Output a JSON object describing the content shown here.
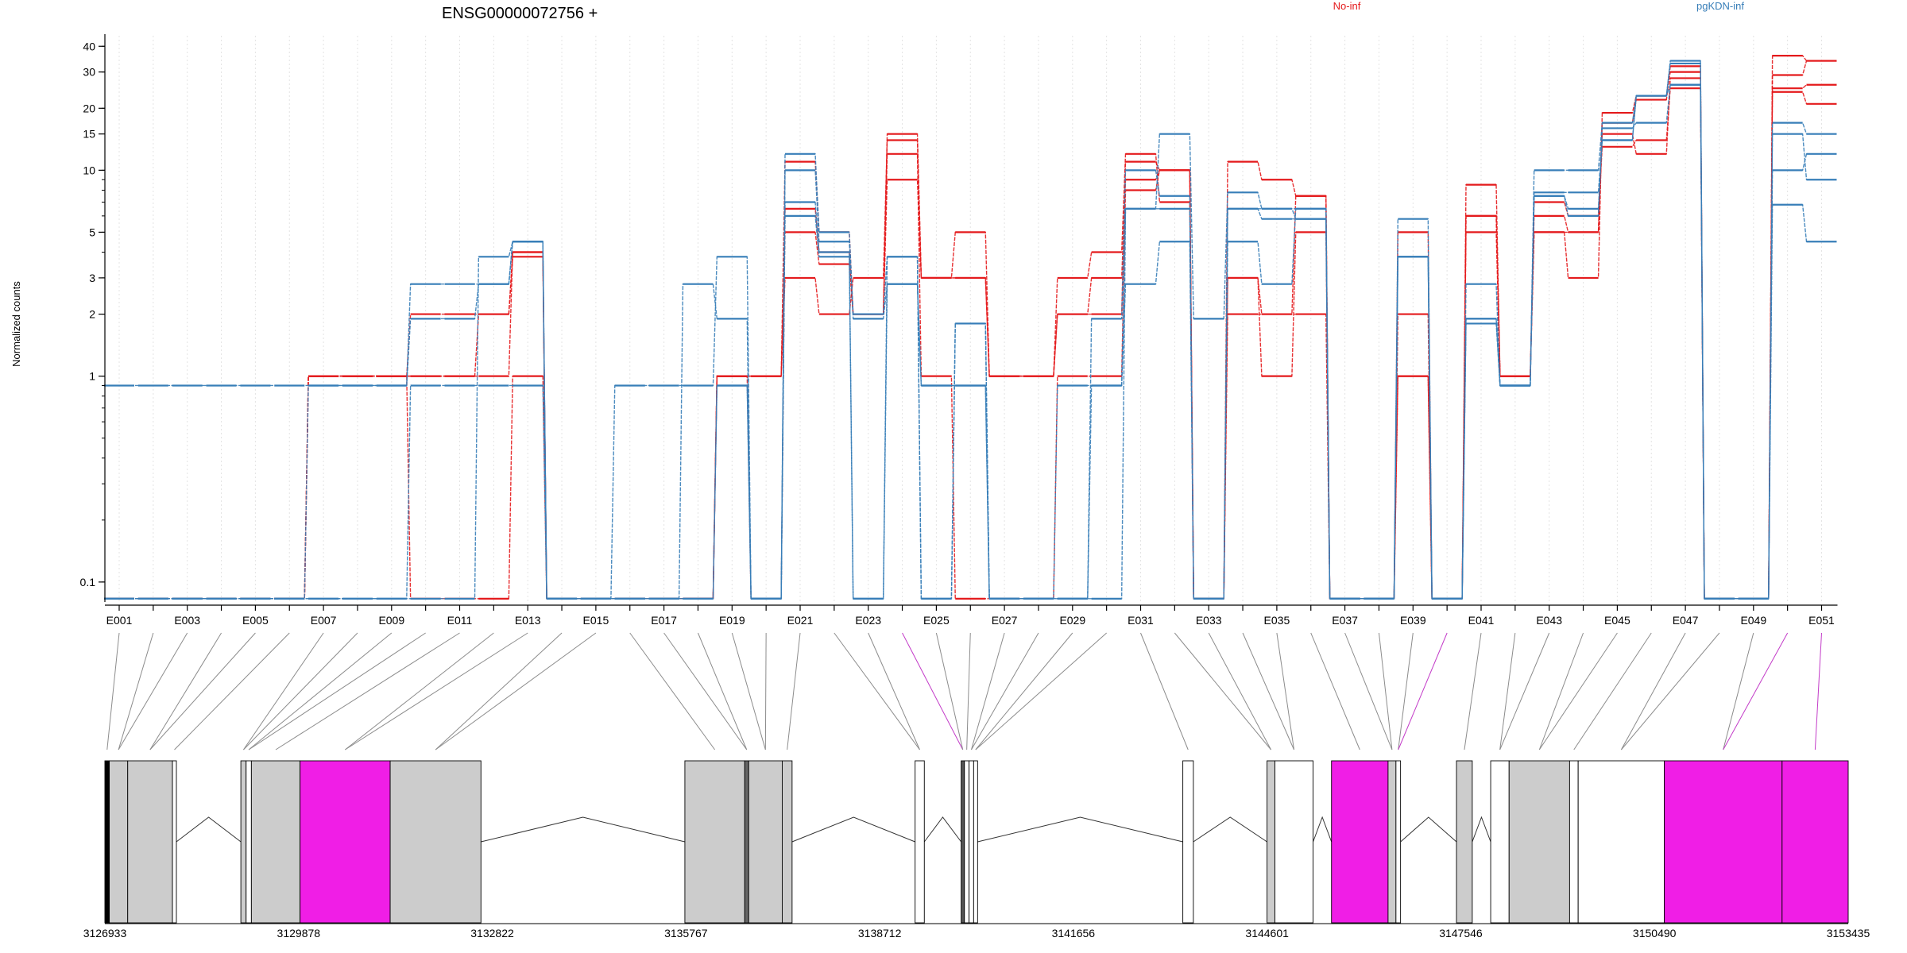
{
  "title": "ENSG00000072756 +",
  "legend": [
    {
      "label": "No-inf",
      "color": "#e41a1c"
    },
    {
      "label": "pgKDN-inf",
      "color": "#377eb8"
    }
  ],
  "ylabel": "Normalized counts",
  "colors": {
    "highlight": "#f01ee6",
    "exon": "#cccccc",
    "mapline": "#8c8c8c"
  },
  "chart_data": {
    "type": "line",
    "yscale": "log",
    "ylim": [
      0.08,
      45
    ],
    "ytick_values": [
      0.1,
      1,
      2,
      3,
      5,
      10,
      15,
      20,
      30,
      40
    ],
    "ytick_labels": [
      "0.1",
      "1",
      "2",
      "3",
      "5",
      "10",
      "15",
      "20",
      "30",
      "40"
    ],
    "x": [
      "E001",
      "E002",
      "E003",
      "E004",
      "E005",
      "E006",
      "E007",
      "E008",
      "E009",
      "E010",
      "E011",
      "E012",
      "E013",
      "E014",
      "E015",
      "E016",
      "E017",
      "E018",
      "E019",
      "E020",
      "E021",
      "E022",
      "E023",
      "E024",
      "E025",
      "E026",
      "E027",
      "E028",
      "E029",
      "E030",
      "E031",
      "E032",
      "E033",
      "E034",
      "E035",
      "E036",
      "E037",
      "E038",
      "E039",
      "E040",
      "E041",
      "E042",
      "E043",
      "E044",
      "E045",
      "E046",
      "E047",
      "E048",
      "E049",
      "E050",
      "E051"
    ],
    "x_tick_labels": [
      "E001",
      "E003",
      "E005",
      "E007",
      "E009",
      "E011",
      "E013",
      "E015",
      "E017",
      "E019",
      "E021",
      "E023",
      "E025",
      "E027",
      "E029",
      "E031",
      "E033",
      "E035",
      "E037",
      "E039",
      "E041",
      "E043",
      "E045",
      "E047",
      "E049",
      "E051"
    ],
    "zero_value": 0.083,
    "series": [
      {
        "group": "No-inf",
        "values": [
          0,
          0,
          0,
          0,
          0,
          0,
          1,
          1,
          1,
          0,
          0,
          0,
          1,
          0,
          0,
          0,
          0,
          0,
          1,
          0,
          6.5,
          4,
          2,
          12,
          1,
          0,
          0,
          0,
          1,
          1,
          8,
          10,
          0,
          3,
          2,
          7.5,
          0,
          0,
          2,
          0,
          8.5,
          1,
          6,
          5,
          15,
          12,
          28,
          0,
          0,
          36,
          34
        ]
      },
      {
        "group": "No-inf",
        "values": [
          0,
          0,
          0,
          0,
          0,
          0,
          1,
          1,
          1,
          2,
          2,
          2,
          4,
          0,
          0,
          0,
          0,
          0,
          1,
          1,
          11,
          5,
          2,
          15,
          3,
          3,
          1,
          1,
          2,
          2,
          11,
          10,
          0,
          11,
          9,
          7.5,
          0,
          0,
          5,
          0,
          6,
          1,
          5,
          5,
          17,
          22,
          32,
          0,
          0,
          25,
          26
        ]
      },
      {
        "group": "No-inf",
        "values": [
          0,
          0,
          0,
          0,
          0,
          0,
          1,
          1,
          1,
          1,
          1,
          1,
          4,
          0,
          0,
          0,
          0,
          0,
          1,
          1,
          5,
          3.5,
          2,
          9,
          3,
          3,
          1,
          1,
          2,
          3,
          9,
          10,
          0,
          2,
          2,
          2,
          0,
          0,
          1,
          0,
          5,
          1,
          7,
          6,
          13,
          14,
          25,
          0,
          0,
          29,
          34
        ]
      },
      {
        "group": "No-inf",
        "values": [
          0,
          0,
          0,
          0,
          0,
          0,
          1,
          1,
          1,
          1,
          1,
          2,
          3.8,
          0,
          0,
          0,
          0,
          0,
          1,
          1,
          3,
          2,
          3,
          14,
          3,
          5,
          1,
          1,
          3,
          4,
          12,
          7,
          0,
          3,
          1,
          5,
          0,
          0,
          1,
          0,
          6,
          1,
          5,
          3,
          19,
          23,
          30,
          0,
          0,
          24,
          21
        ]
      },
      {
        "group": "pgKDN-inf",
        "values": [
          0.9,
          0.9,
          0.9,
          0.9,
          0.9,
          0.9,
          0.9,
          0.9,
          0.9,
          2.8,
          2.8,
          2.8,
          4.5,
          0,
          0,
          0,
          0,
          2.8,
          1.9,
          0,
          12,
          5,
          2,
          3.8,
          0,
          1.8,
          0,
          0,
          0,
          0.9,
          6.5,
          15,
          1.9,
          7.8,
          6.5,
          5.8,
          0,
          0,
          3.8,
          0,
          2.8,
          0.9,
          10,
          10,
          17,
          23,
          34,
          0,
          0,
          17,
          15
        ]
      },
      {
        "group": "pgKDN-inf",
        "values": [
          0,
          0,
          0,
          0,
          0,
          0,
          0.9,
          0.9,
          0.9,
          1.9,
          1.9,
          2.8,
          4.5,
          0,
          0,
          0,
          0,
          0,
          0.9,
          0,
          10,
          4.5,
          1.9,
          2.8,
          0.9,
          0.9,
          0,
          0,
          0,
          1.9,
          10,
          7.5,
          0,
          4.5,
          2.8,
          6.5,
          0,
          0,
          5.8,
          0,
          1.9,
          0.9,
          7.5,
          6,
          16,
          17,
          26,
          0,
          0,
          10,
          12
        ]
      },
      {
        "group": "pgKDN-inf",
        "values": [
          0,
          0,
          0,
          0,
          0,
          0,
          0,
          0,
          0,
          0.9,
          0.9,
          0.9,
          0.9,
          0,
          0,
          0.9,
          0.9,
          0.9,
          3.8,
          0,
          7,
          4,
          0,
          2.8,
          0.9,
          0.9,
          0,
          0,
          0.9,
          0.9,
          2.8,
          4.5,
          0,
          6.5,
          6.5,
          6.5,
          0,
          0,
          3.8,
          0,
          1.9,
          0.9,
          7.5,
          6.5,
          14,
          23,
          33,
          0,
          0,
          6.8,
          4.5
        ]
      },
      {
        "group": "pgKDN-inf",
        "values": [
          0,
          0,
          0,
          0,
          0,
          0,
          0,
          0,
          0,
          0,
          0,
          3.8,
          4.5,
          0,
          0,
          0,
          0,
          0,
          0.9,
          0,
          6,
          3.8,
          0,
          3.8,
          0,
          1.8,
          0,
          0,
          0,
          0,
          6.5,
          6.5,
          0,
          6.5,
          5.8,
          5.8,
          0,
          0,
          3.8,
          0,
          1.8,
          0.9,
          7.8,
          7.8,
          14,
          23,
          26,
          0,
          0,
          15,
          9
        ]
      }
    ]
  },
  "gene_model": {
    "tick_labels": [
      "3126933",
      "3129878",
      "3132822",
      "3135767",
      "3138712",
      "3141656",
      "3144601",
      "3147546",
      "3150490",
      "3153435"
    ],
    "tick_positions": [
      3126933,
      3129878,
      3132822,
      3135767,
      3138712,
      3141656,
      3144601,
      3147546,
      3150490,
      3153435
    ],
    "range": [
      3126933,
      3153435
    ],
    "exons": [
      {
        "start": 3126933,
        "end": 3127000,
        "fill": "#000000"
      },
      {
        "start": 3127000,
        "end": 3127280,
        "fill": "#cccccc"
      },
      {
        "start": 3127280,
        "end": 3127960,
        "fill": "#cccccc"
      },
      {
        "start": 3127960,
        "end": 3128020,
        "fill": "#ffffff"
      },
      {
        "start": 3129000,
        "end": 3129080,
        "fill": "#cccccc"
      },
      {
        "start": 3129080,
        "end": 3129160,
        "fill": "#ffffff"
      },
      {
        "start": 3129160,
        "end": 3129900,
        "fill": "#cccccc"
      },
      {
        "start": 3129900,
        "end": 3131270,
        "fill": "#f01ee6"
      },
      {
        "start": 3131270,
        "end": 3132650,
        "fill": "#cccccc"
      },
      {
        "start": 3135750,
        "end": 3136660,
        "fill": "#cccccc"
      },
      {
        "start": 3136660,
        "end": 3136720,
        "fill": "#666666"
      },
      {
        "start": 3136720,
        "end": 3137230,
        "fill": "#cccccc"
      },
      {
        "start": 3137230,
        "end": 3137380,
        "fill": "#cccccc"
      },
      {
        "start": 3139250,
        "end": 3139390,
        "fill": "#ffffff"
      },
      {
        "start": 3139950,
        "end": 3140000,
        "fill": "#555555"
      },
      {
        "start": 3140000,
        "end": 3140070,
        "fill": "#ffffff"
      },
      {
        "start": 3140070,
        "end": 3140140,
        "fill": "#ffffff"
      },
      {
        "start": 3140140,
        "end": 3140200,
        "fill": "#ffffff"
      },
      {
        "start": 3143320,
        "end": 3143480,
        "fill": "#ffffff"
      },
      {
        "start": 3144600,
        "end": 3144720,
        "fill": "#cccccc"
      },
      {
        "start": 3144720,
        "end": 3145300,
        "fill": "#ffffff"
      },
      {
        "start": 3145580,
        "end": 3146440,
        "fill": "#f01ee6"
      },
      {
        "start": 3146440,
        "end": 3146560,
        "fill": "#cccccc"
      },
      {
        "start": 3146560,
        "end": 3146630,
        "fill": "#ffffff"
      },
      {
        "start": 3147480,
        "end": 3147720,
        "fill": "#cccccc"
      },
      {
        "start": 3148000,
        "end": 3148280,
        "fill": "#ffffff"
      },
      {
        "start": 3148280,
        "end": 3149200,
        "fill": "#cccccc"
      },
      {
        "start": 3149200,
        "end": 3149330,
        "fill": "#ffffff"
      },
      {
        "start": 3149330,
        "end": 3150640,
        "fill": "#ffffff"
      },
      {
        "start": 3150640,
        "end": 3152430,
        "fill": "#f01ee6"
      },
      {
        "start": 3152430,
        "end": 3153435,
        "fill": "#f01ee6"
      }
    ],
    "introns": [
      [
        3128020,
        3129000
      ],
      [
        3132650,
        3135750
      ],
      [
        3137380,
        3139250
      ],
      [
        3139390,
        3139950
      ],
      [
        3140200,
        3143320
      ],
      [
        3143480,
        3144600
      ],
      [
        3145300,
        3145580
      ],
      [
        3146630,
        3147480
      ],
      [
        3147720,
        3148000
      ]
    ]
  }
}
